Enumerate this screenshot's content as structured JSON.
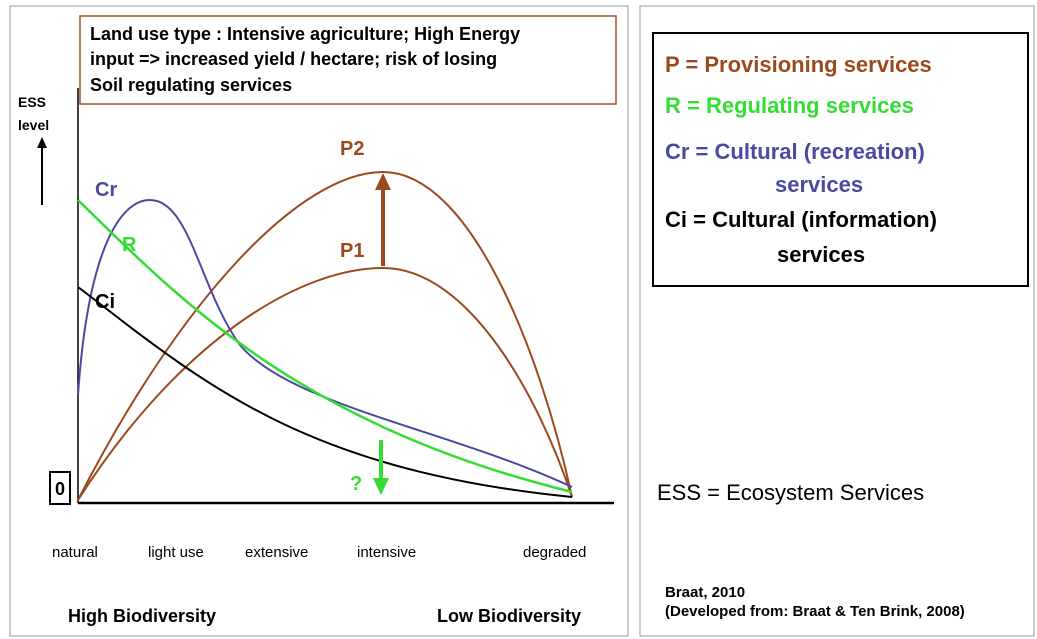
{
  "title_box": {
    "lines": [
      "Land use type : Intensive agriculture; High Energy",
      "input => increased yield / hectare; risk of losing",
      "Soil regulating services"
    ]
  },
  "y_axis_label": [
    "ESS",
    "level"
  ],
  "origin_label": "0",
  "curve_labels": {
    "cr": "Cr",
    "r": "R",
    "ci": "Ci",
    "p2": "P2",
    "p1": "P1",
    "question": "?"
  },
  "x_labels": [
    "natural",
    "light use",
    "extensive",
    "intensive",
    "degraded"
  ],
  "bottom_labels": [
    "High Biodiversity",
    "Low Biodiversity"
  ],
  "legend": [
    {
      "lines": [
        "P = Provisioning services"
      ]
    },
    {
      "lines": [
        "R = Regulating services"
      ]
    },
    {
      "lines": [
        "Cr = Cultural (recreation)",
        "services"
      ]
    },
    {
      "lines": [
        "Ci = Cultural (information)",
        "services"
      ]
    }
  ],
  "footnote": "ESS = Ecosystem Services",
  "citation": [
    "Braat, 2010",
    "(Developed from: Braat & Ten Brink, 2008)"
  ]
}
